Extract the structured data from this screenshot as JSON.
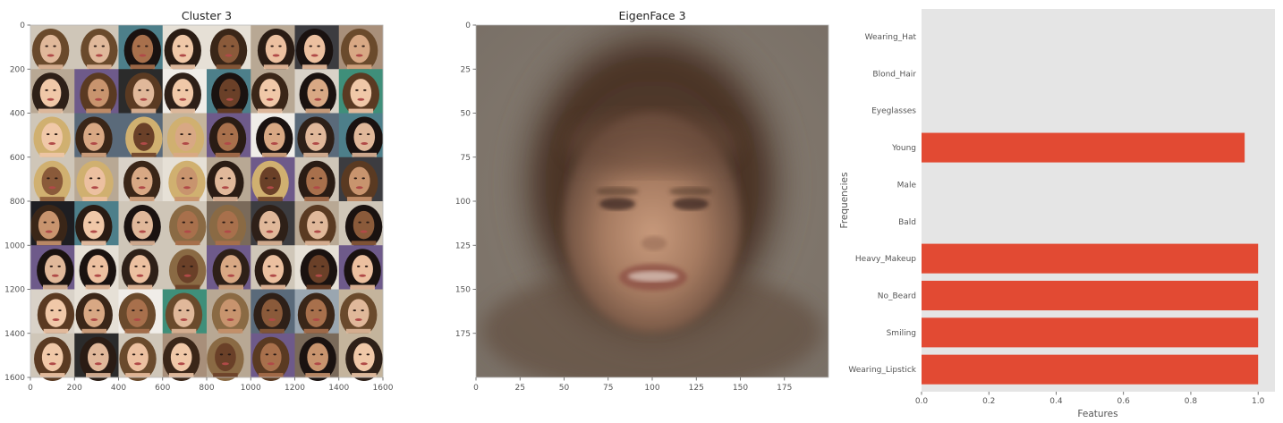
{
  "panels": {
    "cluster": {
      "title": "Cluster 3",
      "grid_rows": 8,
      "grid_cols": 8
    },
    "eigen": {
      "title": "EigenFace 3"
    }
  },
  "chart_data": [
    {
      "type": "image",
      "title": "Cluster 3",
      "xlim": [
        0,
        1600
      ],
      "ylim": [
        1600,
        0
      ],
      "xticks": [
        0,
        200,
        400,
        600,
        800,
        1000,
        1200,
        1400,
        1600
      ],
      "yticks": [
        0,
        200,
        400,
        600,
        800,
        1000,
        1200,
        1400,
        1600
      ]
    },
    {
      "type": "image",
      "title": "EigenFace 3",
      "xlim": [
        0,
        200
      ],
      "ylim": [
        200,
        0
      ],
      "xticks": [
        0,
        25,
        50,
        75,
        100,
        125,
        150,
        175
      ],
      "yticks": [
        0,
        25,
        50,
        75,
        100,
        125,
        150,
        175
      ]
    },
    {
      "type": "bar",
      "orientation": "horizontal",
      "title": "",
      "xlabel": "Features",
      "ylabel": "Frequencies",
      "xlim": [
        0,
        1.05
      ],
      "xticks": [
        0.0,
        0.2,
        0.4,
        0.6,
        0.8,
        1.0
      ],
      "categories": [
        "Wearing_Lipstick",
        "Smiling",
        "No_Beard",
        "Heavy_Makeup",
        "Bald",
        "Male",
        "Young",
        "Eyeglasses",
        "Blond_Hair",
        "Wearing_Hat"
      ],
      "values": [
        1.0,
        1.0,
        1.0,
        1.0,
        0.0,
        0.0,
        0.96,
        0.0,
        0.0,
        0.0
      ],
      "grid": false,
      "bar_color": "#e24a33",
      "background_color": "#e5e5e5"
    }
  ]
}
